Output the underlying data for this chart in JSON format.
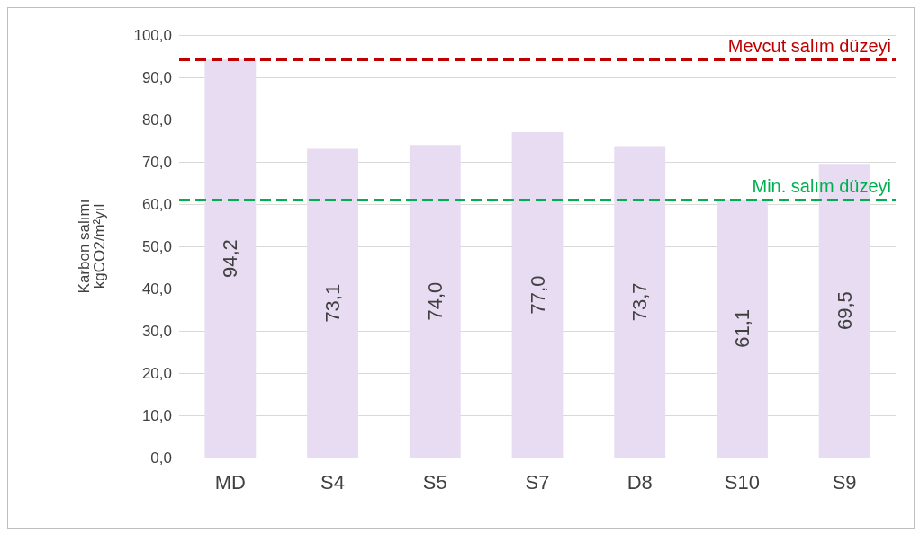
{
  "chart_data": {
    "type": "bar",
    "ylabel": "Karbon salımı\nkgCO2/m²yıl",
    "categories": [
      "MD",
      "S4",
      "S5",
      "S7",
      "D8",
      "S10",
      "S9"
    ],
    "values": [
      94.2,
      73.1,
      74.0,
      77.0,
      73.7,
      61.1,
      69.5
    ],
    "value_labels": [
      "94,2",
      "73,1",
      "74,0",
      "77,0",
      "73,7",
      "61,1",
      "69,5"
    ],
    "color": "#e7dcf2",
    "ylim": [
      0,
      100
    ],
    "yticks": [
      {
        "value": 0,
        "label": "0,0"
      },
      {
        "value": 10,
        "label": "10,0"
      },
      {
        "value": 20,
        "label": "20,0"
      },
      {
        "value": 30,
        "label": "30,0"
      },
      {
        "value": 40,
        "label": "40,0"
      },
      {
        "value": 50,
        "label": "50,0"
      },
      {
        "value": 60,
        "label": "60,0"
      },
      {
        "value": 70,
        "label": "70,0"
      },
      {
        "value": 80,
        "label": "80,0"
      },
      {
        "value": 90,
        "label": "90,0"
      },
      {
        "value": 100,
        "label": "100,0"
      }
    ],
    "ref_lines": [
      {
        "axis": "y",
        "value": 94.2,
        "label": "Mevcut salım düzeyi",
        "color": "#c00000",
        "line_style": "dashed"
      },
      {
        "axis": "y",
        "value": 61.1,
        "label": "Min. salım düzeyi",
        "color": "#00b050",
        "line_style": "dashed"
      }
    ],
    "grid": "y"
  }
}
